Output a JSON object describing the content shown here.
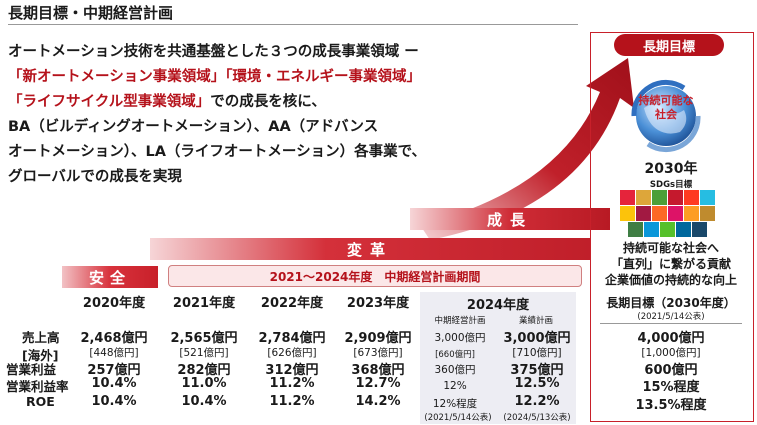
{
  "title": "長期目標・中期経営計画",
  "intro": {
    "line1": "オートメーション技術を共通基盤とした３つの成長事業領域 ー",
    "line2": "「新オートメーション事業領域」「環境・エネルギー事業領域」",
    "line3_red": "「ライフサイクル型事業領域」",
    "line3_rest": "での成長を核に、",
    "line4": "BA（ビルディングオートメーション）、AA（アドバンス",
    "line5": "オートメーション）、LA（ライフオートメーション）各事業で、",
    "line6": "グローバルでの成長を実現"
  },
  "bands": {
    "anzen": "安全",
    "henkaku": "変革",
    "seicho": "成長"
  },
  "plan_period": "2021～2024年度　中期経営計画期間",
  "row_labels": {
    "sales": "売上高",
    "overseas": "[海外]",
    "op_income": "営業利益",
    "op_margin": "営業利益率",
    "roe": "ROE"
  },
  "years": [
    {
      "year": "2020年度",
      "sales": "2,468億円",
      "overseas": "[448億円]",
      "op_income": "257億円",
      "op_margin": "10.4%",
      "roe": "10.4%"
    },
    {
      "year": "2021年度",
      "sales": "2,565億円",
      "overseas": "[521億円]",
      "op_income": "282億円",
      "op_margin": "11.0%",
      "roe": "10.4%"
    },
    {
      "year": "2022年度",
      "sales": "2,784億円",
      "overseas": "[626億円]",
      "op_income": "312億円",
      "op_margin": "11.2%",
      "roe": "11.2%"
    },
    {
      "year": "2023年度",
      "sales": "2,909億円",
      "overseas": "[673億円]",
      "op_income": "368億円",
      "op_margin": "12.7%",
      "roe": "14.2%"
    }
  ],
  "fy2024": {
    "year": "2024年度",
    "plan_label": "中期経営計画",
    "forecast_label": "業績計画",
    "plan": {
      "sales": "3,000億円",
      "overseas": "[660億円]",
      "op_income": "360億円",
      "op_margin": "12%",
      "roe": "12%程度",
      "date": "(2021/5/14公表)"
    },
    "forecast": {
      "sales": "3,000億円",
      "overseas": "[710億円]",
      "op_income": "375億円",
      "op_margin": "12.5%",
      "roe": "12.2%",
      "date": "(2024/5/13公表)"
    }
  },
  "long_term": {
    "tag": "長期目標",
    "globe_text_1": "持続可能な",
    "globe_text_2": "社会",
    "year": "2030年",
    "sdgs": "SDGs目標",
    "tagline1": "持続可能な社会へ",
    "tagline2": "「直列」に繋がる貢献",
    "tagline3": "企業価値の持続的な向上",
    "heading": "長期目標（2030年度）",
    "date": "(2021/5/14公表)",
    "sales": "4,000億円",
    "overseas": "[1,000億円]",
    "op_income": "600億円",
    "op_margin": "15%程度",
    "roe": "13.5%程度"
  },
  "colors": {
    "brand_red": "#b5121b",
    "panel_gray": "#ededf3"
  },
  "sdg_colors": [
    "#e5243b",
    "#dda63a",
    "#4c9f38",
    "#c5192d",
    "#ff3a21",
    "#26bde2",
    "#fcc30b",
    "#a21942",
    "#fd6925",
    "#dd1367",
    "#fd9d24",
    "#bf8b2e",
    "#3f7e44",
    "#0a97d9",
    "#56c02b",
    "#00689d",
    "#19486a"
  ]
}
